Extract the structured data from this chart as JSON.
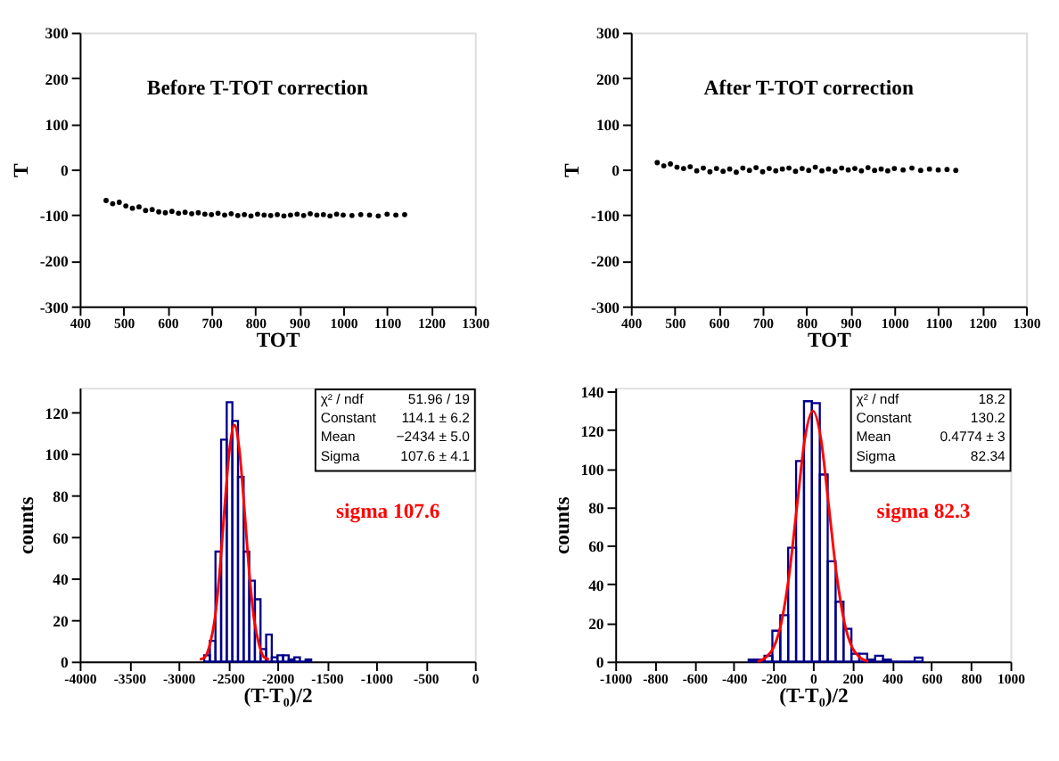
{
  "chart_data": [
    {
      "type": "scatter",
      "title": "Before T-TOT correction",
      "xlabel": "TOT",
      "ylabel": "T",
      "xlim": [
        400,
        1300
      ],
      "xticks": [
        400,
        500,
        600,
        700,
        800,
        900,
        1000,
        1100,
        1200,
        1300
      ],
      "ylim": [
        -300,
        300
      ],
      "yticks": [
        -300,
        -200,
        -100,
        0,
        100,
        200,
        300
      ],
      "grid": false,
      "series": [
        {
          "color": "#000000",
          "x": [
            460,
            475,
            490,
            505,
            520,
            535,
            550,
            565,
            580,
            595,
            610,
            625,
            640,
            655,
            670,
            685,
            700,
            715,
            730,
            745,
            760,
            775,
            790,
            805,
            820,
            835,
            850,
            865,
            880,
            895,
            910,
            925,
            940,
            955,
            970,
            985,
            1000,
            1020,
            1040,
            1060,
            1080,
            1100,
            1120,
            1140
          ],
          "values": [
            -68,
            -75,
            -72,
            -80,
            -85,
            -82,
            -90,
            -88,
            -93,
            -95,
            -92,
            -96,
            -94,
            -97,
            -95,
            -98,
            -99,
            -96,
            -100,
            -97,
            -101,
            -99,
            -102,
            -98,
            -100,
            -101,
            -99,
            -102,
            -100,
            -98,
            -101,
            -97,
            -100,
            -99,
            -102,
            -98,
            -100,
            -101,
            -99,
            -100,
            -102,
            -98,
            -100,
            -99
          ]
        }
      ]
    },
    {
      "type": "scatter",
      "title": "After T-TOT correction",
      "xlabel": "TOT",
      "ylabel": "T",
      "xlim": [
        400,
        1300
      ],
      "xticks": [
        400,
        500,
        600,
        700,
        800,
        900,
        1000,
        1100,
        1200,
        1300
      ],
      "ylim": [
        -300,
        300
      ],
      "yticks": [
        -300,
        -200,
        -100,
        0,
        100,
        200,
        300
      ],
      "grid": false,
      "series": [
        {
          "color": "#000000",
          "x": [
            460,
            475,
            490,
            505,
            520,
            535,
            550,
            565,
            580,
            595,
            610,
            625,
            640,
            655,
            670,
            685,
            700,
            715,
            730,
            745,
            760,
            775,
            790,
            805,
            820,
            835,
            850,
            865,
            880,
            895,
            910,
            925,
            940,
            955,
            970,
            985,
            1000,
            1020,
            1040,
            1060,
            1080,
            1100,
            1120,
            1140
          ],
          "values": [
            15,
            8,
            12,
            5,
            2,
            6,
            -3,
            3,
            -5,
            2,
            -4,
            1,
            -6,
            3,
            -2,
            4,
            -5,
            2,
            -3,
            1,
            3,
            -4,
            2,
            -2,
            5,
            -3,
            1,
            -4,
            3,
            -1,
            2,
            -3,
            4,
            -2,
            1,
            -3,
            2,
            -1,
            3,
            -2,
            1,
            -1,
            0,
            -2
          ]
        }
      ]
    },
    {
      "type": "histogram",
      "xlabel": "(T-T₀)/2",
      "ylabel": "counts",
      "xlim": [
        -4000,
        0
      ],
      "xticks": [
        -4000,
        -3500,
        -3000,
        -2500,
        -2000,
        -1500,
        -1000,
        -500,
        0
      ],
      "ylim": [
        0,
        132
      ],
      "yticks": [
        0,
        20,
        40,
        60,
        80,
        100,
        120
      ],
      "grid": false,
      "annotations": [
        "χ² / ndf",
        "51.96 / 19",
        "Constant",
        "114.1 ± 6.2",
        "Mean",
        "−2434 ± 5.0",
        "Sigma",
        "107.6 ± 4.1",
        "sigma 107.6"
      ],
      "series": [
        {
          "type": "histogram",
          "color": "#00008b",
          "bins": [
            -2740,
            -2683,
            -2626,
            -2569,
            -2512,
            -2455,
            -2398,
            -2341,
            -2284,
            -2227,
            -2170,
            -2113,
            -2056,
            -1999,
            -1942,
            -1885,
            -1828,
            -1771,
            -1714,
            -1657
          ],
          "values": [
            3,
            10,
            53,
            107,
            125,
            116,
            89,
            53,
            39,
            30,
            6,
            13,
            2,
            3,
            3,
            1,
            2,
            0,
            1
          ]
        },
        {
          "type": "line",
          "color": "#ff0000",
          "x": [
            -2784,
            -2734,
            -2684,
            -2634,
            -2584,
            -2534,
            -2484,
            -2434,
            -2384,
            -2334,
            -2284,
            -2234,
            -2184,
            -2134,
            -2084
          ],
          "values": [
            1,
            2,
            8,
            20,
            43,
            74,
            102,
            114,
            102,
            74,
            43,
            20,
            8,
            2,
            1
          ]
        }
      ]
    },
    {
      "type": "histogram",
      "xlabel": "(T-T₀)/2",
      "ylabel": "counts",
      "xlim": [
        -1000,
        1000
      ],
      "xticks": [
        -1000,
        -800,
        -600,
        -400,
        -200,
        0,
        200,
        400,
        600,
        800,
        1000
      ],
      "ylim": [
        0,
        142
      ],
      "yticks": [
        0,
        20,
        40,
        60,
        80,
        100,
        120,
        140
      ],
      "grid": false,
      "annotations": [
        "χ² / ndf",
        "18.2",
        "Constant",
        "130.2",
        "Mean",
        "0.4774 ± 3",
        "Sigma",
        "82.34",
        "sigma 82.3"
      ],
      "series": [
        {
          "type": "histogram",
          "color": "#00008b",
          "bins": [
            -325,
            -285,
            -245,
            -205,
            -165,
            -125,
            -85,
            -45,
            -5,
            35,
            75,
            115,
            155,
            195,
            235,
            275,
            315,
            355,
            395,
            435,
            475,
            515,
            555
          ],
          "values": [
            1,
            1,
            3,
            16,
            24,
            59,
            104,
            135,
            134,
            97,
            52,
            31,
            17,
            4,
            4,
            1,
            3,
            1,
            0,
            0,
            0,
            2
          ]
        },
        {
          "type": "line",
          "color": "#ff0000",
          "x": [
            -280,
            -240,
            -200,
            -160,
            -120,
            -80,
            -40,
            0,
            40,
            80,
            120,
            160,
            200,
            240,
            280
          ],
          "values": [
            0,
            2,
            7,
            20,
            45,
            81,
            116,
            130,
            116,
            81,
            45,
            20,
            7,
            2,
            0
          ]
        }
      ]
    }
  ]
}
